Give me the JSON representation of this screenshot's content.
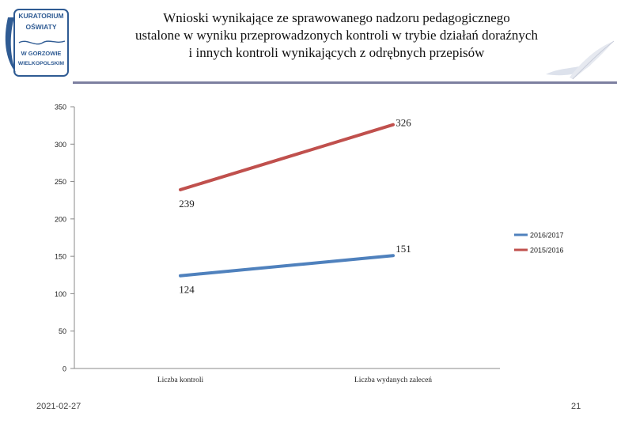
{
  "header": {
    "logo_lines": [
      "KURATORIUM",
      "OŚWIATY",
      "W GORZOWIE",
      "WIELKOPOLSKIM"
    ],
    "title_lines": [
      "Wnioski wynikające ze sprawowanego nadzoru pedagogicznego",
      "ustalone w wyniku przeprowadzonych kontroli w trybie działań doraźnych",
      "i innych kontroli wynikających z odrębnych przepisów"
    ]
  },
  "chart_data": {
    "type": "line",
    "categories": [
      "Liczba kontroli",
      "Liczba wydanych zaleceń"
    ],
    "series": [
      {
        "name": "2016/2017",
        "values": [
          124,
          151
        ],
        "color": "#4f81bd"
      },
      {
        "name": "2015/2016",
        "values": [
          239,
          326
        ],
        "color": "#c0504d"
      }
    ],
    "ylim": [
      0,
      350
    ],
    "yticks": [
      0,
      50,
      100,
      150,
      200,
      250,
      300,
      350
    ],
    "grid": false,
    "legend": "right",
    "data_labels": true
  },
  "footer": {
    "date": "2021-02-27",
    "page": "21"
  }
}
